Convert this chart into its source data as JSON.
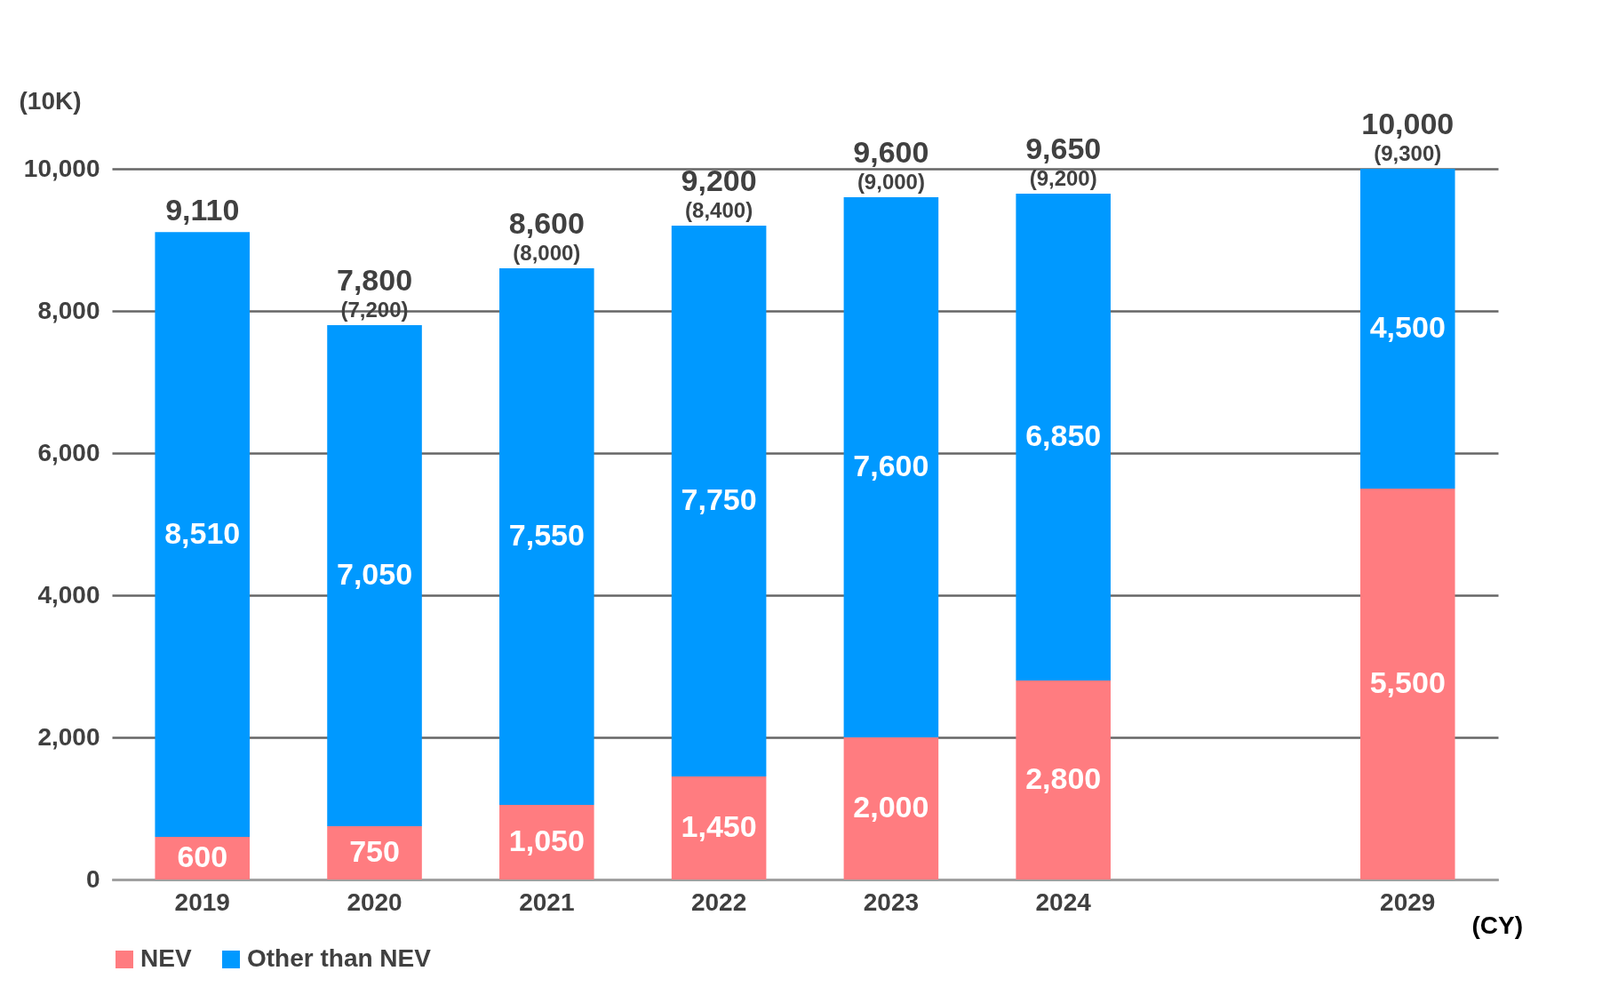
{
  "chart_data": {
    "type": "bar",
    "stacked": true,
    "ylabel": "(10K)",
    "xlabel": "(CY)",
    "categories": [
      "2019",
      "2020",
      "2021",
      "2022",
      "2023",
      "2024",
      null,
      "2029"
    ],
    "series": [
      {
        "name": "NEV",
        "color": "#ff7c80",
        "values": [
          600,
          750,
          1050,
          1450,
          2000,
          2800,
          null,
          5500
        ],
        "value_labels": [
          "600",
          "750",
          "1,050",
          "1,450",
          "2,000",
          "2,800",
          null,
          "5,500"
        ]
      },
      {
        "name": "Other than NEV",
        "color": "#0099ff",
        "values": [
          8510,
          7050,
          7550,
          7750,
          7600,
          6850,
          null,
          4500
        ],
        "value_labels": [
          "8,510",
          "7,050",
          "7,550",
          "7,750",
          "7,600",
          "6,850",
          null,
          "4,500"
        ]
      }
    ],
    "totals": [
      "9,110",
      "7,800",
      "8,600",
      "9,200",
      "9,600",
      "9,650",
      null,
      "10,000"
    ],
    "annotations": [
      {
        "text": "(7,200)",
        "x": "2020",
        "y": 7800
      },
      {
        "text": "(8,000)",
        "x": "2021",
        "y": 8600
      },
      {
        "text": "(8,400)",
        "x": "2022",
        "y": 9200
      },
      {
        "text": "(9,000)",
        "x": "2023",
        "y": 9600
      },
      {
        "text": "(9,200)",
        "x": "2024",
        "y": 9650
      },
      {
        "text": "(9,300)",
        "x": "2029",
        "y": 10000
      }
    ],
    "ylim": [
      0,
      10000
    ],
    "yticks": [
      {
        "value": 0,
        "label": "0"
      },
      {
        "value": 2000,
        "label": "2,000"
      },
      {
        "value": 4000,
        "label": "4,000"
      },
      {
        "value": 6000,
        "label": "6,000"
      },
      {
        "value": 8000,
        "label": "8,000"
      },
      {
        "value": 10000,
        "label": "10,000"
      }
    ],
    "grid": "y",
    "legend": "bottom"
  }
}
